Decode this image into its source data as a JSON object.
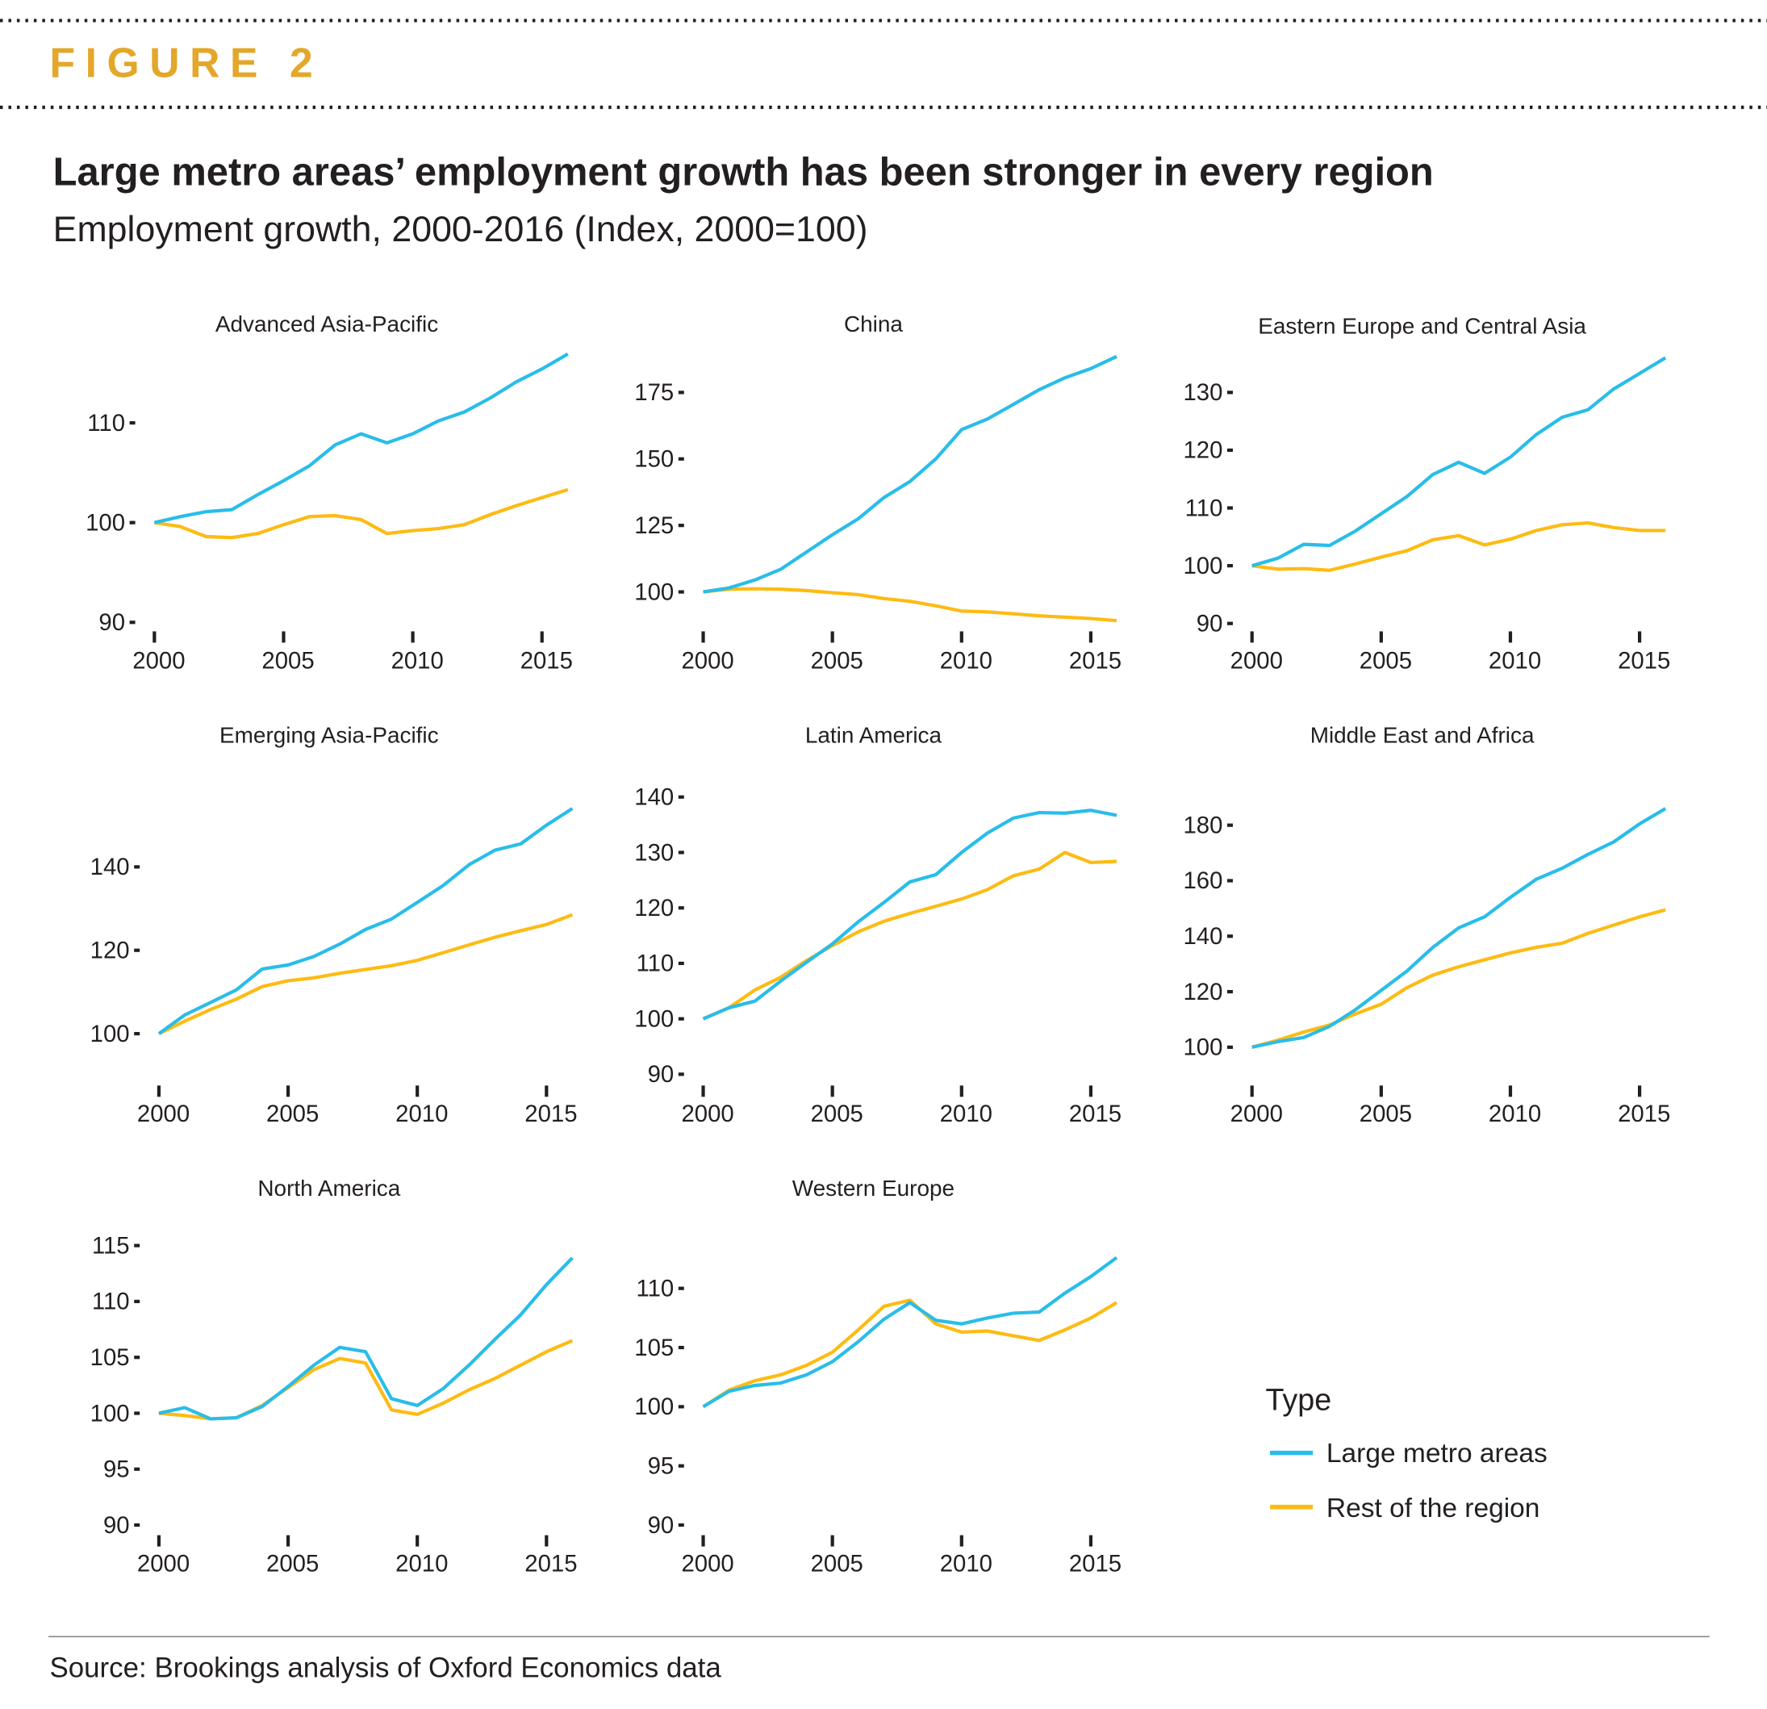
{
  "header": {
    "figure_label": "FIGURE 2",
    "title": "Large metro areas’ employment growth has been stronger in every region",
    "subtitle": "Employment growth, 2000-2016 (Index, 2000=100)"
  },
  "source": "Source: Brookings analysis of Oxford Economics data",
  "colors": {
    "large_metro": "#29bde9",
    "rest": "#fdbb13",
    "figure_label": "#e3a72a"
  },
  "chart_data": {
    "type": "line",
    "x": [
      2000,
      2001,
      2002,
      2003,
      2004,
      2005,
      2006,
      2007,
      2008,
      2009,
      2010,
      2011,
      2012,
      2013,
      2014,
      2015,
      2016
    ],
    "x_ticks": [
      2000,
      2005,
      2010,
      2015
    ],
    "legend": {
      "title": "Type",
      "placement": "bottom-right",
      "entries": [
        "Large metro areas",
        "Rest of the region"
      ]
    },
    "panels": [
      {
        "title": "Advanced Asia-Pacific",
        "y_ticks": [
          90,
          100,
          110
        ],
        "series": [
          {
            "name": "Large metro areas",
            "values": [
              100,
              100.6,
              101.1,
              101.3,
              102.8,
              104.2,
              105.7,
              107.8,
              108.9,
              108.0,
              108.9,
              110.2,
              111.1,
              112.5,
              114.1,
              115.4,
              116.9
            ]
          },
          {
            "name": "Rest of the region",
            "values": [
              100,
              99.6,
              98.6,
              98.5,
              98.9,
              99.8,
              100.6,
              100.7,
              100.3,
              98.9,
              99.2,
              99.4,
              99.8,
              100.8,
              101.7,
              102.5,
              103.3
            ]
          }
        ]
      },
      {
        "title": "China",
        "y_ticks": [
          100,
          125,
          150,
          175
        ],
        "series": [
          {
            "name": "Large metro areas",
            "values": [
              100,
              101.5,
              104.5,
              108.5,
              115,
              121.5,
              127.5,
              135.5,
              141.5,
              150,
              161,
              165,
              170.5,
              176,
              180.5,
              184,
              188.5
            ]
          },
          {
            "name": "Rest of the region",
            "values": [
              100,
              101,
              101.2,
              101,
              100.5,
              99.7,
              99,
              97.5,
              96.5,
              94.8,
              92.8,
              92.5,
              91.8,
              91,
              90.5,
              90,
              89.2
            ]
          }
        ]
      },
      {
        "title": "Eastern Europe and Central Asia",
        "y_ticks": [
          90,
          100,
          110,
          120,
          130
        ],
        "series": [
          {
            "name": "Large metro areas",
            "values": [
              100,
              101.3,
              103.7,
              103.5,
              106,
              109,
              112,
              115.8,
              117.9,
              116,
              118.8,
              122.7,
              125.7,
              127,
              130.6,
              133.3,
              136
            ]
          },
          {
            "name": "Rest of the region",
            "values": [
              100,
              99.4,
              99.5,
              99.2,
              100.3,
              101.5,
              102.6,
              104.5,
              105.2,
              103.6,
              104.6,
              106.1,
              107.1,
              107.4,
              106.6,
              106.1,
              106.1
            ]
          }
        ]
      },
      {
        "title": "Emerging Asia-Pacific",
        "y_ticks": [
          100,
          120,
          140
        ],
        "series": [
          {
            "name": "Large metro areas",
            "values": [
              100,
              104.5,
              107.5,
              110.5,
              115.5,
              116.5,
              118.5,
              121.5,
              125,
              127.5,
              131.5,
              135.5,
              140.5,
              144,
              145.5,
              150,
              154
            ]
          },
          {
            "name": "Rest of the region",
            "values": [
              100,
              103,
              105.8,
              108.3,
              111.3,
              112.7,
              113.4,
              114.5,
              115.4,
              116.3,
              117.6,
              119.4,
              121.3,
              123.1,
              124.7,
              126.2,
              128.5
            ]
          }
        ]
      },
      {
        "title": "Latin America",
        "y_ticks": [
          90,
          100,
          110,
          120,
          130,
          140
        ],
        "series": [
          {
            "name": "Large metro areas",
            "values": [
              100,
              102,
              103.2,
              106.8,
              110.2,
              113.5,
              117.5,
              121,
              124.7,
              126,
              130,
              133.5,
              136.2,
              137.2,
              137.1,
              137.6,
              136.7
            ]
          },
          {
            "name": "Rest of the region",
            "values": [
              100,
              102,
              105.2,
              107.5,
              110.5,
              113.2,
              115.7,
              117.6,
              119,
              120.3,
              121.6,
              123.3,
              125.8,
              127,
              130,
              128.2,
              128.4
            ]
          }
        ]
      },
      {
        "title": "Middle East and Africa",
        "y_ticks": [
          100,
          120,
          140,
          160,
          180
        ],
        "series": [
          {
            "name": "Large metro areas",
            "values": [
              100,
              102,
              103.5,
              107.5,
              113.5,
              120.5,
              127.5,
              136,
              143,
              147,
              154,
              160.5,
              164.5,
              169.5,
              174,
              180.5,
              186
            ]
          },
          {
            "name": "Rest of the region",
            "values": [
              100,
              102.5,
              105.5,
              108,
              112,
              115.5,
              121.5,
              126,
              129,
              131.5,
              134,
              136,
              137.5,
              141,
              144,
              147,
              149.5
            ]
          }
        ]
      },
      {
        "title": "North America",
        "y_ticks": [
          90,
          95,
          100,
          105,
          110,
          115
        ],
        "series": [
          {
            "name": "Large metro areas",
            "values": [
              100,
              100.5,
              99.5,
              99.6,
              100.6,
              102.4,
              104.3,
              105.9,
              105.5,
              101.3,
              100.7,
              102.2,
              104.3,
              106.6,
              108.8,
              111.5,
              113.9
            ]
          },
          {
            "name": "Rest of the region",
            "values": [
              100,
              99.8,
              99.5,
              99.6,
              100.7,
              102.3,
              103.9,
              104.9,
              104.5,
              100.3,
              99.9,
              100.9,
              102.1,
              103.1,
              104.3,
              105.5,
              106.5
            ]
          }
        ]
      },
      {
        "title": "Western Europe",
        "y_ticks": [
          90,
          95,
          100,
          105,
          110
        ],
        "series": [
          {
            "name": "Large metro areas",
            "values": [
              100,
              101.3,
              101.8,
              102,
              102.7,
              103.8,
              105.5,
              107.4,
              108.8,
              107.3,
              107,
              107.5,
              107.9,
              108,
              109.6,
              111,
              112.6
            ]
          },
          {
            "name": "Rest of the region",
            "values": [
              100,
              101.4,
              102.2,
              102.7,
              103.5,
              104.6,
              106.5,
              108.5,
              109,
              107,
              106.3,
              106.4,
              106,
              105.6,
              106.5,
              107.5,
              108.8
            ]
          }
        ]
      }
    ]
  }
}
